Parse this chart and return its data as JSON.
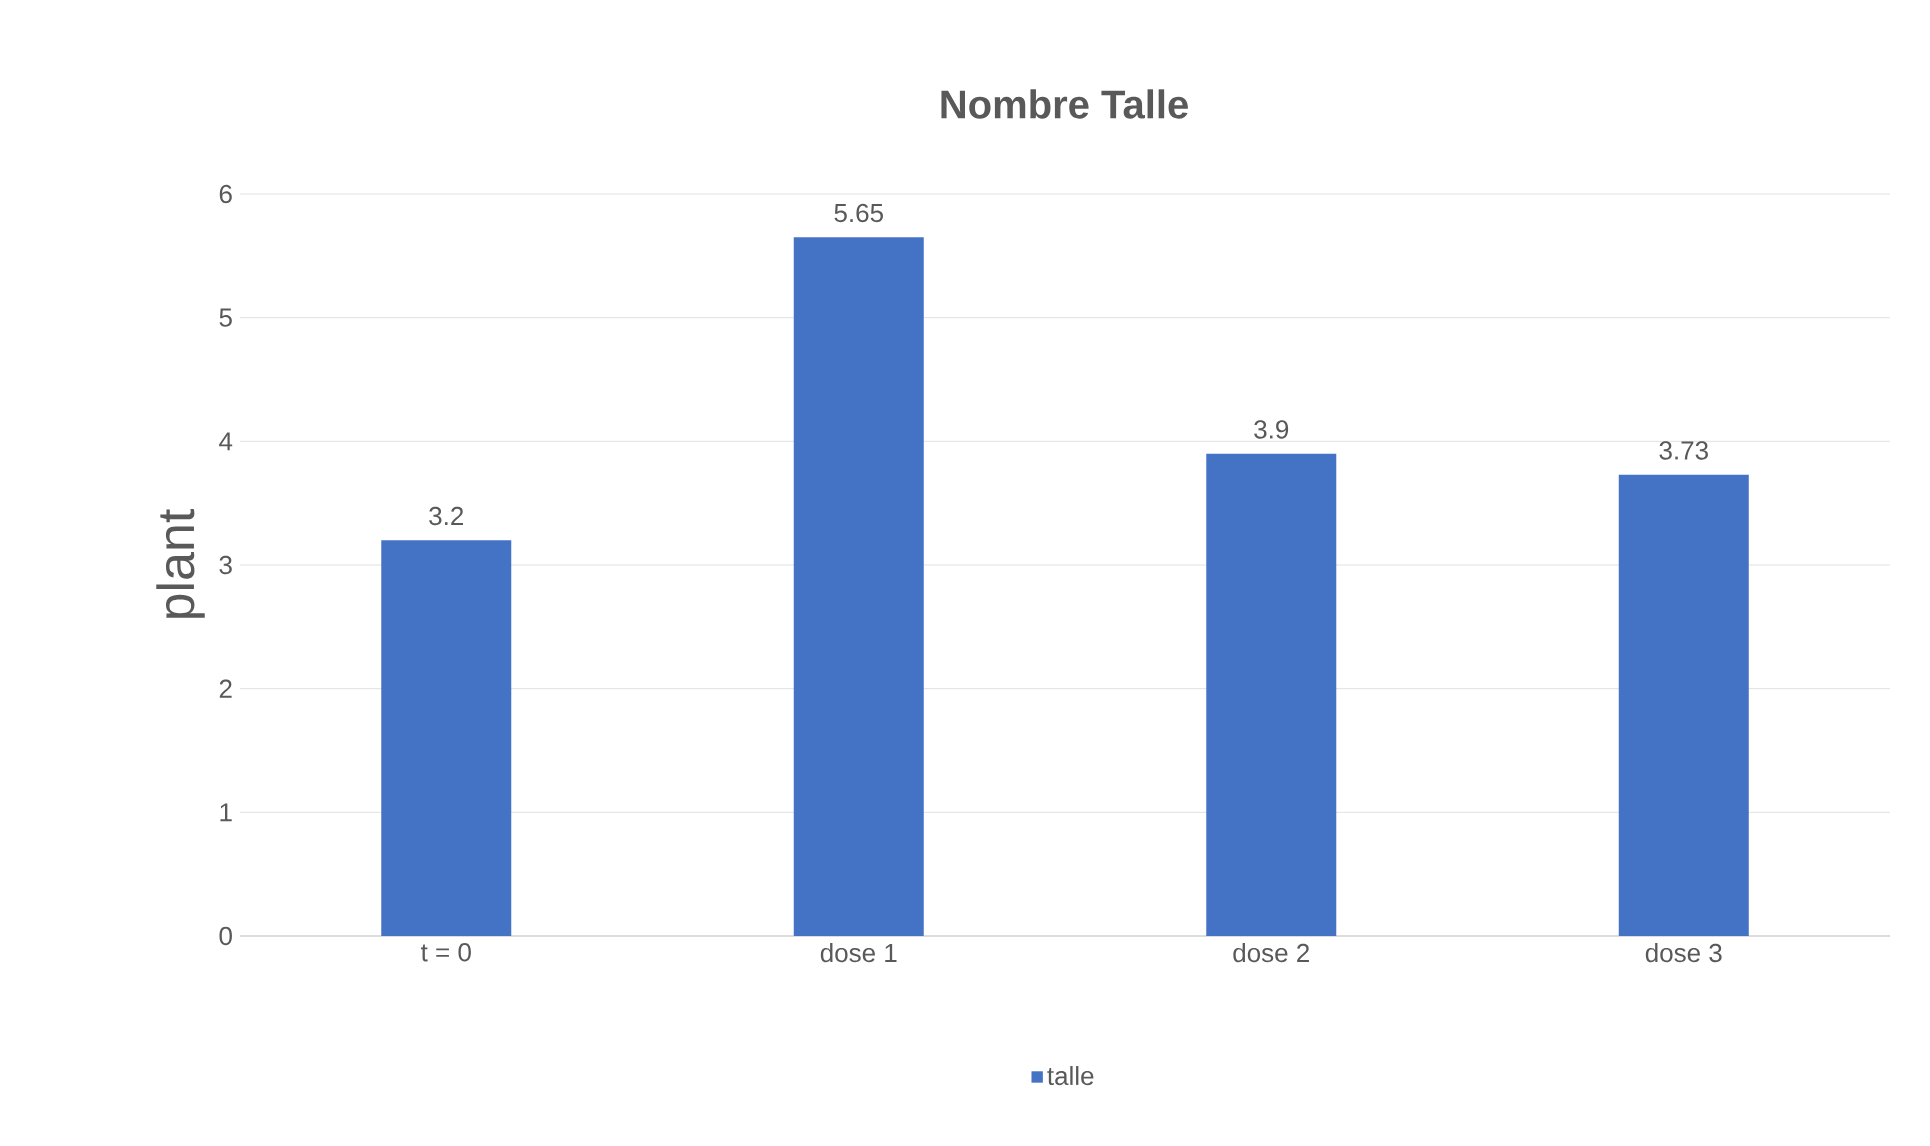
{
  "chart_data": {
    "type": "bar",
    "title": "Nombre Talle",
    "ylabel": "plant",
    "categories": [
      "t = 0",
      "dose 1",
      "dose 2",
      "dose 3"
    ],
    "series": [
      {
        "name": "talle",
        "color": "#4472c4",
        "values": [
          3.2,
          5.65,
          3.9,
          3.73
        ]
      }
    ],
    "ylim": [
      0,
      6
    ],
    "yticks": [
      0,
      1,
      2,
      3,
      4,
      5,
      6
    ],
    "grid": "y",
    "legend": "bottom",
    "data_labels": true
  }
}
